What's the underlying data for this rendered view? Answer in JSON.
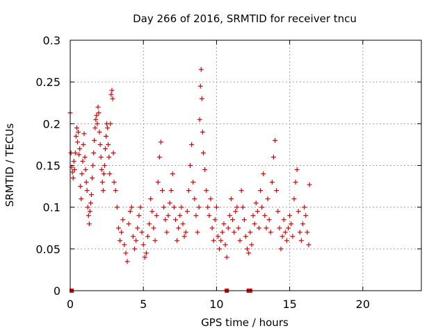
{
  "chart_data": {
    "type": "scatter",
    "title": "Day 266 of 2016, SRMTID for receiver tncu",
    "xlabel": "GPS time / hours",
    "ylabel": "SRMTID / TECUs",
    "xlim": [
      0,
      24
    ],
    "ylim": [
      0,
      0.3
    ],
    "xticks": [
      0,
      5,
      10,
      15,
      20
    ],
    "xtick_labels": [
      "0",
      "5",
      "10",
      "15",
      "20"
    ],
    "yticks": [
      0,
      0.05,
      0.1,
      0.15,
      0.2,
      0.25,
      0.3
    ],
    "ytick_labels": [
      "0",
      "0.05",
      "0.1",
      "0.15",
      "0.2",
      "0.25",
      "0.3"
    ],
    "grid": true,
    "marker": "plus",
    "color": "#e00000",
    "series": [
      {
        "name": "SRMTID",
        "points": [
          [
            0.0,
            0.213
          ],
          [
            0.05,
            0.165
          ],
          [
            0.1,
            0.148
          ],
          [
            0.15,
            0.142
          ],
          [
            0.2,
            0.135
          ],
          [
            0.25,
            0.155
          ],
          [
            0.3,
            0.145
          ],
          [
            0.35,
            0.165
          ],
          [
            0.4,
            0.185
          ],
          [
            0.45,
            0.195
          ],
          [
            0.5,
            0.178
          ],
          [
            0.55,
            0.19
          ],
          [
            0.6,
            0.163
          ],
          [
            0.65,
            0.17
          ],
          [
            0.7,
            0.125
          ],
          [
            0.75,
            0.11
          ],
          [
            0.8,
            0.14
          ],
          [
            0.85,
            0.155
          ],
          [
            0.9,
            0.175
          ],
          [
            0.95,
            0.188
          ],
          [
            1.0,
            0.16
          ],
          [
            1.05,
            0.145
          ],
          [
            1.1,
            0.13
          ],
          [
            1.15,
            0.12
          ],
          [
            1.2,
            0.1
          ],
          [
            1.25,
            0.09
          ],
          [
            1.3,
            0.08
          ],
          [
            1.35,
            0.095
          ],
          [
            1.4,
            0.105
          ],
          [
            1.45,
            0.115
          ],
          [
            1.5,
            0.135
          ],
          [
            1.55,
            0.15
          ],
          [
            1.6,
            0.165
          ],
          [
            1.65,
            0.18
          ],
          [
            1.7,
            0.195
          ],
          [
            1.75,
            0.205
          ],
          [
            1.8,
            0.21
          ],
          [
            1.85,
            0.2
          ],
          [
            1.9,
            0.22
          ],
          [
            1.95,
            0.213
          ],
          [
            2.0,
            0.19
          ],
          [
            2.05,
            0.175
          ],
          [
            2.1,
            0.16
          ],
          [
            2.15,
            0.145
          ],
          [
            2.2,
            0.13
          ],
          [
            2.25,
            0.12
          ],
          [
            2.3,
            0.14
          ],
          [
            2.35,
            0.15
          ],
          [
            2.4,
            0.17
          ],
          [
            2.45,
            0.185
          ],
          [
            2.5,
            0.2
          ],
          [
            2.55,
            0.195
          ],
          [
            2.6,
            0.175
          ],
          [
            2.65,
            0.16
          ],
          [
            2.7,
            0.14
          ],
          [
            2.75,
            0.2
          ],
          [
            2.8,
            0.235
          ],
          [
            2.85,
            0.24
          ],
          [
            2.9,
            0.23
          ],
          [
            2.95,
            0.165
          ],
          [
            3.0,
            0.13
          ],
          [
            3.1,
            0.12
          ],
          [
            3.2,
            0.1
          ],
          [
            3.3,
            0.075
          ],
          [
            3.4,
            0.06
          ],
          [
            3.5,
            0.07
          ],
          [
            3.6,
            0.085
          ],
          [
            3.7,
            0.055
          ],
          [
            3.8,
            0.045
          ],
          [
            3.9,
            0.035
          ],
          [
            4.0,
            0.08
          ],
          [
            4.1,
            0.095
          ],
          [
            4.2,
            0.1
          ],
          [
            4.3,
            0.065
          ],
          [
            4.4,
            0.05
          ],
          [
            4.5,
            0.06
          ],
          [
            4.6,
            0.075
          ],
          [
            4.7,
            0.09
          ],
          [
            4.8,
            0.1
          ],
          [
            4.9,
            0.07
          ],
          [
            5.0,
            0.055
          ],
          [
            5.1,
            0.04
          ],
          [
            5.2,
            0.045
          ],
          [
            5.3,
            0.065
          ],
          [
            5.4,
            0.08
          ],
          [
            5.5,
            0.11
          ],
          [
            5.6,
            0.095
          ],
          [
            5.7,
            0.075
          ],
          [
            5.8,
            0.06
          ],
          [
            5.9,
            0.09
          ],
          [
            6.0,
            0.13
          ],
          [
            6.1,
            0.16
          ],
          [
            6.2,
            0.178
          ],
          [
            6.3,
            0.12
          ],
          [
            6.4,
            0.1
          ],
          [
            6.5,
            0.085
          ],
          [
            6.6,
            0.07
          ],
          [
            6.7,
            0.09
          ],
          [
            6.8,
            0.105
          ],
          [
            6.9,
            0.12
          ],
          [
            7.0,
            0.14
          ],
          [
            7.1,
            0.1
          ],
          [
            7.2,
            0.085
          ],
          [
            7.3,
            0.06
          ],
          [
            7.4,
            0.075
          ],
          [
            7.5,
            0.09
          ],
          [
            7.6,
            0.1
          ],
          [
            7.7,
            0.08
          ],
          [
            7.8,
            0.065
          ],
          [
            7.9,
            0.07
          ],
          [
            8.0,
            0.095
          ],
          [
            8.1,
            0.12
          ],
          [
            8.2,
            0.15
          ],
          [
            8.3,
            0.175
          ],
          [
            8.4,
            0.13
          ],
          [
            8.5,
            0.11
          ],
          [
            8.6,
            0.09
          ],
          [
            8.7,
            0.07
          ],
          [
            8.8,
            0.1
          ],
          [
            8.85,
            0.205
          ],
          [
            8.9,
            0.245
          ],
          [
            8.95,
            0.265
          ],
          [
            9.0,
            0.23
          ],
          [
            9.05,
            0.19
          ],
          [
            9.1,
            0.165
          ],
          [
            9.2,
            0.145
          ],
          [
            9.3,
            0.12
          ],
          [
            9.4,
            0.1
          ],
          [
            9.5,
            0.09
          ],
          [
            9.6,
            0.11
          ],
          [
            9.7,
            0.075
          ],
          [
            9.8,
            0.06
          ],
          [
            9.9,
            0.085
          ],
          [
            10.0,
            0.1
          ],
          [
            10.1,
            0.065
          ],
          [
            10.2,
            0.05
          ],
          [
            10.3,
            0.06
          ],
          [
            10.4,
            0.07
          ],
          [
            10.5,
            0.08
          ],
          [
            10.6,
            0.055
          ],
          [
            10.7,
            0.04
          ],
          [
            10.8,
            0.075
          ],
          [
            10.9,
            0.09
          ],
          [
            11.0,
            0.11
          ],
          [
            11.1,
            0.085
          ],
          [
            11.2,
            0.07
          ],
          [
            11.3,
            0.095
          ],
          [
            11.4,
            0.1
          ],
          [
            11.5,
            0.075
          ],
          [
            11.6,
            0.06
          ],
          [
            11.7,
            0.12
          ],
          [
            11.8,
            0.1
          ],
          [
            11.9,
            0.085
          ],
          [
            12.0,
            0.065
          ],
          [
            12.1,
            0.05
          ],
          [
            12.2,
            0.045
          ],
          [
            12.3,
            0.07
          ],
          [
            12.4,
            0.055
          ],
          [
            12.5,
            0.09
          ],
          [
            12.6,
            0.08
          ],
          [
            12.7,
            0.105
          ],
          [
            12.8,
            0.095
          ],
          [
            12.9,
            0.075
          ],
          [
            13.0,
            0.12
          ],
          [
            13.1,
            0.1
          ],
          [
            13.2,
            0.14
          ],
          [
            13.3,
            0.09
          ],
          [
            13.4,
            0.075
          ],
          [
            13.5,
            0.11
          ],
          [
            13.6,
            0.085
          ],
          [
            13.7,
            0.07
          ],
          [
            13.8,
            0.13
          ],
          [
            13.9,
            0.16
          ],
          [
            14.0,
            0.18
          ],
          [
            14.1,
            0.12
          ],
          [
            14.2,
            0.095
          ],
          [
            14.3,
            0.075
          ],
          [
            14.4,
            0.05
          ],
          [
            14.5,
            0.065
          ],
          [
            14.6,
            0.085
          ],
          [
            14.7,
            0.07
          ],
          [
            14.8,
            0.06
          ],
          [
            14.9,
            0.075
          ],
          [
            15.0,
            0.09
          ],
          [
            15.1,
            0.08
          ],
          [
            15.2,
            0.065
          ],
          [
            15.3,
            0.11
          ],
          [
            15.4,
            0.13
          ],
          [
            15.5,
            0.145
          ],
          [
            15.6,
            0.095
          ],
          [
            15.7,
            0.07
          ],
          [
            15.8,
            0.06
          ],
          [
            15.9,
            0.08
          ],
          [
            16.0,
            0.1
          ],
          [
            16.1,
            0.09
          ],
          [
            16.2,
            0.07
          ],
          [
            16.3,
            0.055
          ],
          [
            16.35,
            0.127
          ]
        ]
      }
    ],
    "zero_markers": [
      0.1,
      10.7,
      12.2,
      12.3
    ]
  }
}
